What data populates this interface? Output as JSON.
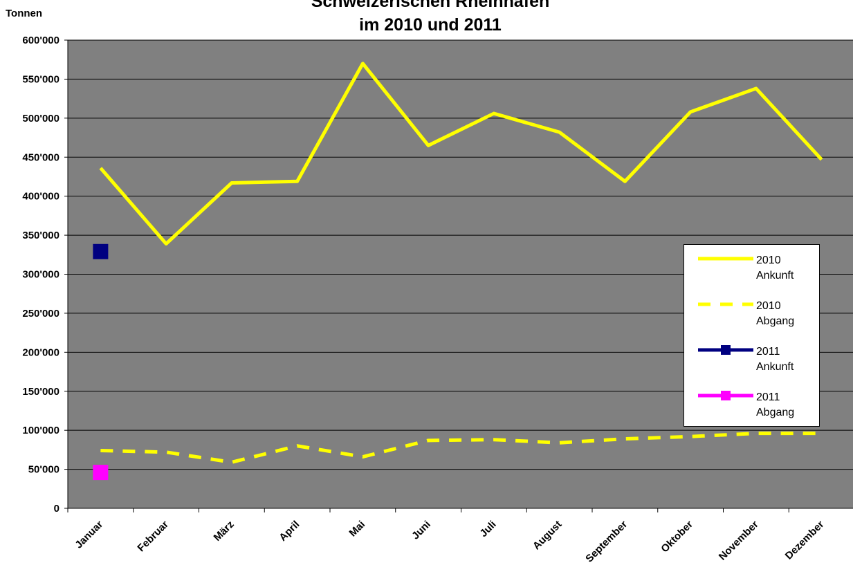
{
  "chart_data": {
    "type": "line",
    "title": [
      "Schweizerischen Rheinhäfen",
      "im 2010 und 2011"
    ],
    "y_label": "Tonnen",
    "categories": [
      "Januar",
      "Februar",
      "März",
      "April",
      "Mai",
      "Juni",
      "Juli",
      "August",
      "September",
      "Oktober",
      "November",
      "Dezember"
    ],
    "series": [
      {
        "name": "2010 Ankunft",
        "color": "#ffff00",
        "line_style": "solid",
        "marker": "none",
        "values": [
          436000,
          339000,
          417000,
          419000,
          570000,
          465000,
          506000,
          482000,
          419000,
          508000,
          538000,
          447000
        ]
      },
      {
        "name": "2010 Abgang",
        "color": "#ffff00",
        "line_style": "dashed",
        "marker": "none",
        "values": [
          74000,
          72000,
          59000,
          80000,
          66000,
          87000,
          88000,
          84000,
          89000,
          92000,
          96000,
          96000
        ]
      },
      {
        "name": "2011 Ankunft",
        "color": "#000080",
        "line_style": "solid",
        "marker": "square",
        "values": [
          329000,
          null,
          null,
          null,
          null,
          null,
          null,
          null,
          null,
          null,
          null,
          null
        ]
      },
      {
        "name": "2011 Abgang",
        "color": "#ff00ff",
        "line_style": "solid",
        "marker": "square",
        "values": [
          46000,
          null,
          null,
          null,
          null,
          null,
          null,
          null,
          null,
          null,
          null,
          null
        ]
      }
    ],
    "ylim": [
      0,
      600000
    ],
    "yticks": [
      0,
      {
        "value": 50000,
        "label": "50'000"
      },
      {
        "value": 100000,
        "label": "100'000"
      },
      {
        "value": 150000,
        "label": "150'000"
      },
      {
        "value": 200000,
        "label": "200'000"
      },
      {
        "value": 250000,
        "label": "250'000"
      },
      {
        "value": 300000,
        "label": "300'000"
      },
      {
        "value": 350000,
        "label": "350'000"
      },
      {
        "value": 400000,
        "label": "400'000"
      },
      {
        "value": 450000,
        "label": "450'000"
      },
      {
        "value": 500000,
        "label": "500'000"
      },
      {
        "value": 550000,
        "label": "550'000"
      },
      {
        "value": 600000,
        "label": "600'000"
      }
    ],
    "grid": true,
    "plot_background": "#808080",
    "legend": "right"
  }
}
